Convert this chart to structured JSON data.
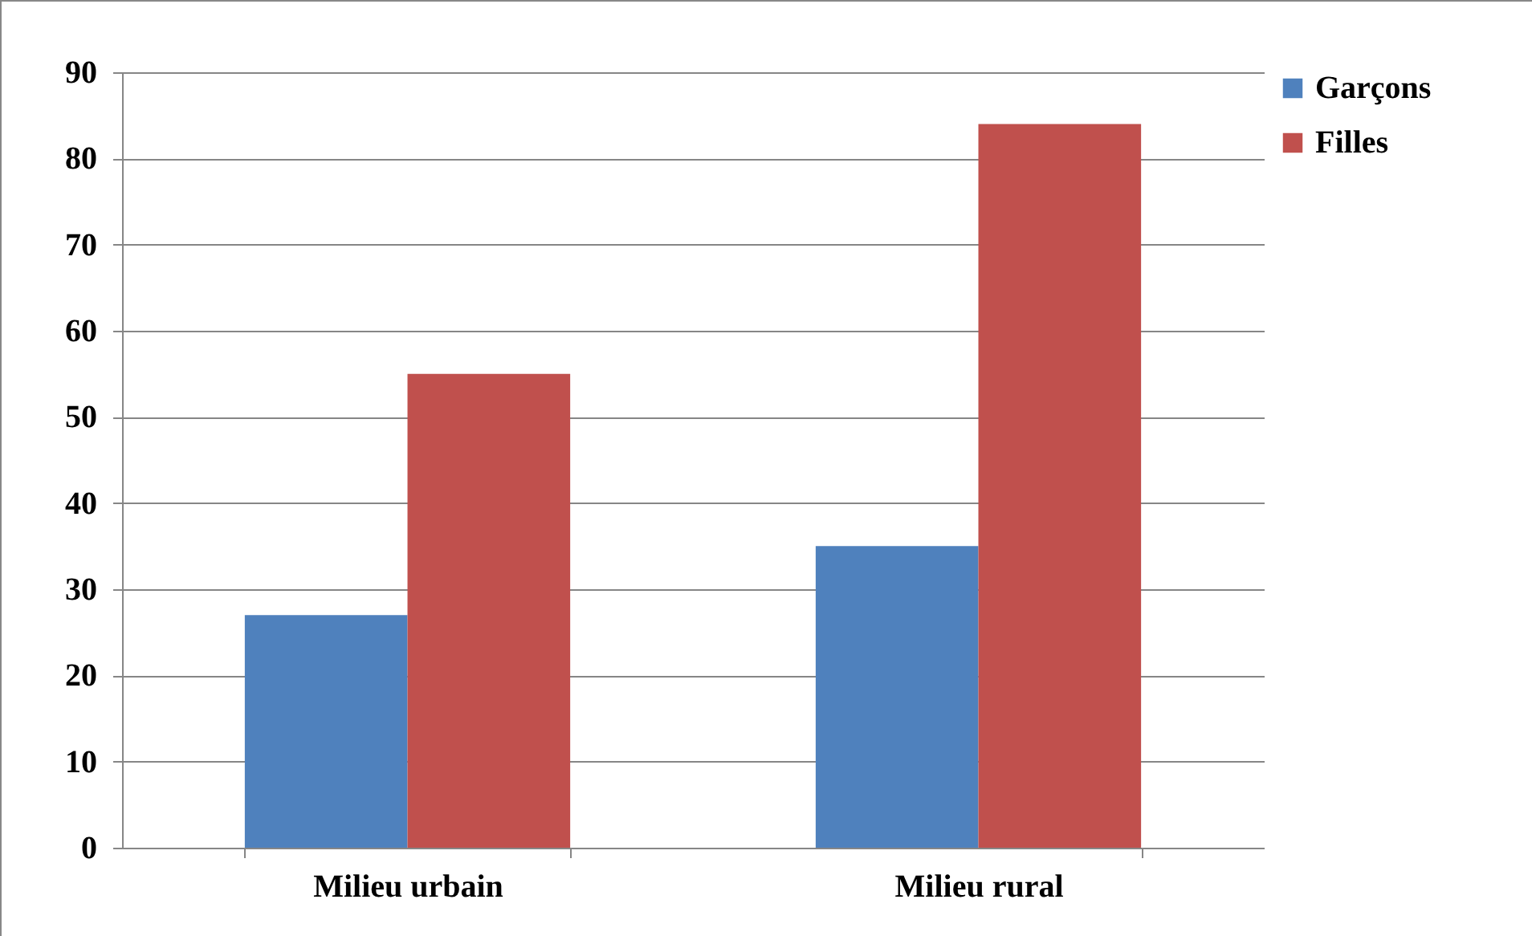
{
  "chart_data": {
    "type": "bar",
    "categories": [
      "Milieu urbain",
      "Milieu rural"
    ],
    "series": [
      {
        "name": "Garçons",
        "color": "#4f81bd",
        "values": [
          27,
          35
        ]
      },
      {
        "name": "Filles",
        "color": "#c0504d",
        "values": [
          55,
          84
        ]
      }
    ],
    "ylim": [
      0,
      90
    ],
    "yticks": [
      0,
      10,
      20,
      30,
      40,
      50,
      60,
      70,
      80,
      90
    ],
    "grid": "y",
    "legend": "right"
  }
}
